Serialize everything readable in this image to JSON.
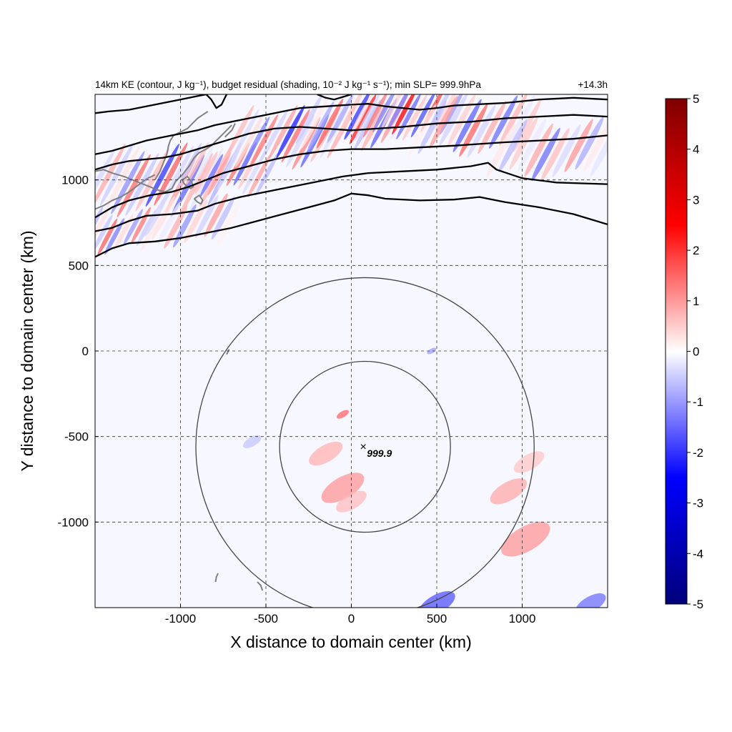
{
  "chart_data": {
    "type": "heatmap",
    "title": "14km KE (contour, J kg⁻¹), budget residual (shading, 10⁻² J kg⁻¹ s⁻¹); min SLP= 999.9hPa",
    "time_label": "+14.3h",
    "xlabel": "X distance to domain center (km)",
    "ylabel": "Y distance to domain center (km)",
    "xlim": [
      -1500,
      1500
    ],
    "ylim": [
      -1500,
      1500
    ],
    "x_ticks": [
      -1000,
      -500,
      0,
      500,
      1000
    ],
    "y_ticks": [
      -1000,
      -500,
      0,
      500,
      1000
    ],
    "x_tick_labels": [
      "-1000",
      "-500",
      "0",
      "500",
      "1000"
    ],
    "y_tick_labels": [
      "-1000",
      "-500",
      "0",
      "500",
      "1000"
    ],
    "grid": "dashed",
    "colorbar": {
      "placement": "right",
      "range": [
        -5,
        5
      ],
      "ticks": [
        5,
        4,
        3,
        2,
        1,
        0,
        -1,
        -2,
        -3,
        -4,
        -5
      ],
      "tick_labels": [
        "5",
        "4",
        "3",
        "2",
        "1",
        "0",
        "-1",
        "-2",
        "-3",
        "-4",
        "-5"
      ],
      "colors": [
        "#00007a",
        "#0000ff",
        "#ffffff",
        "#ff0000",
        "#800000"
      ]
    },
    "storm_center": {
      "x": 70,
      "y": -560,
      "label": "999.9",
      "marker": "×"
    },
    "rings_km": [
      {
        "cx": 80,
        "cy": -560,
        "r": 500
      },
      {
        "cx": 80,
        "cy": -560,
        "r": 990
      }
    ],
    "ke_contours": [
      [
        [
          -1500,
          550
        ],
        [
          -1400,
          600
        ],
        [
          -1300,
          630
        ],
        [
          -1150,
          640
        ],
        [
          -1000,
          660
        ],
        [
          -850,
          690
        ],
        [
          -700,
          720
        ],
        [
          -550,
          760
        ],
        [
          -400,
          800
        ],
        [
          -250,
          840
        ],
        [
          -100,
          880
        ],
        [
          0,
          920
        ],
        [
          100,
          910
        ],
        [
          200,
          890
        ],
        [
          400,
          880
        ],
        [
          600,
          885
        ],
        [
          750,
          900
        ],
        [
          900,
          870
        ],
        [
          1100,
          840
        ],
        [
          1300,
          800
        ],
        [
          1500,
          740
        ]
      ],
      [
        [
          -1500,
          700
        ],
        [
          -1400,
          720
        ],
        [
          -1300,
          760
        ],
        [
          -1200,
          790
        ],
        [
          -1050,
          800
        ],
        [
          -900,
          820
        ],
        [
          -800,
          860
        ],
        [
          -650,
          900
        ],
        [
          -500,
          930
        ],
        [
          -350,
          960
        ],
        [
          -200,
          990
        ],
        [
          -50,
          1020
        ],
        [
          100,
          1040
        ],
        [
          300,
          1050
        ],
        [
          500,
          1060
        ],
        [
          700,
          1080
        ],
        [
          800,
          1100
        ],
        [
          850,
          1060
        ],
        [
          1000,
          1010
        ],
        [
          1200,
          985
        ],
        [
          1350,
          980
        ],
        [
          1500,
          975
        ]
      ],
      [
        [
          -1500,
          780
        ],
        [
          -1400,
          840
        ],
        [
          -1300,
          880
        ],
        [
          -1180,
          910
        ],
        [
          -1050,
          930
        ],
        [
          -950,
          960
        ],
        [
          -850,
          1000
        ],
        [
          -750,
          1040
        ],
        [
          -600,
          1080
        ],
        [
          -450,
          1120
        ],
        [
          -300,
          1150
        ],
        [
          -150,
          1170
        ],
        [
          0,
          1180
        ],
        [
          200,
          1180
        ],
        [
          400,
          1190
        ],
        [
          600,
          1200
        ],
        [
          750,
          1210
        ],
        [
          900,
          1220
        ],
        [
          1100,
          1230
        ],
        [
          1300,
          1240
        ],
        [
          1500,
          1260
        ]
      ],
      [
        [
          -1500,
          1060
        ],
        [
          -1400,
          1090
        ],
        [
          -1300,
          1110
        ],
        [
          -1200,
          1120
        ],
        [
          -1100,
          1130
        ],
        [
          -1000,
          1150
        ],
        [
          -900,
          1180
        ],
        [
          -800,
          1210
        ],
        [
          -700,
          1240
        ],
        [
          -600,
          1270
        ],
        [
          -450,
          1300
        ],
        [
          -300,
          1310
        ],
        [
          -150,
          1300
        ],
        [
          0,
          1290
        ],
        [
          150,
          1300
        ],
        [
          300,
          1310
        ],
        [
          500,
          1330
        ],
        [
          700,
          1340
        ],
        [
          900,
          1360
        ],
        [
          1100,
          1370
        ],
        [
          1300,
          1380
        ],
        [
          1500,
          1370
        ]
      ],
      [
        [
          -1500,
          1150
        ],
        [
          -1400,
          1170
        ],
        [
          -1300,
          1200
        ],
        [
          -1200,
          1230
        ],
        [
          -1100,
          1250
        ],
        [
          -1000,
          1270
        ],
        [
          -900,
          1290
        ],
        [
          -800,
          1320
        ],
        [
          -700,
          1340
        ],
        [
          -600,
          1360
        ],
        [
          -500,
          1380
        ],
        [
          -400,
          1400
        ],
        [
          -300,
          1420
        ],
        [
          -150,
          1430
        ],
        [
          0,
          1440
        ],
        [
          100,
          1445
        ],
        [
          200,
          1430
        ],
        [
          300,
          1420
        ],
        [
          400,
          1410
        ],
        [
          500,
          1420
        ],
        [
          600,
          1435
        ],
        [
          700,
          1440
        ],
        [
          800,
          1445
        ],
        [
          900,
          1450
        ],
        [
          1000,
          1460
        ],
        [
          1100,
          1470
        ],
        [
          1300,
          1480
        ],
        [
          1500,
          1470
        ]
      ],
      [
        [
          -1500,
          1390
        ],
        [
          -1420,
          1400
        ],
        [
          -1300,
          1410
        ],
        [
          -1200,
          1430
        ],
        [
          -1100,
          1450
        ],
        [
          -1000,
          1470
        ],
        [
          -900,
          1490
        ],
        [
          -850,
          1500
        ]
      ],
      [
        [
          -850,
          1500
        ],
        [
          -820,
          1470
        ],
        [
          -790,
          1420
        ],
        [
          -760,
          1440
        ],
        [
          -730,
          1500
        ]
      ],
      [
        [
          -200,
          1500
        ],
        [
          -150,
          1480
        ],
        [
          -100,
          1470
        ],
        [
          -50,
          1485
        ],
        [
          0,
          1500
        ]
      ]
    ],
    "coastlines": [
      [
        [
          -1500,
          1050
        ],
        [
          -1450,
          1060
        ],
        [
          -1400,
          1040
        ],
        [
          -1330,
          1020
        ],
        [
          -1280,
          1000
        ],
        [
          -1230,
          980
        ],
        [
          -1180,
          960
        ],
        [
          -1130,
          940
        ],
        [
          -1090,
          930
        ],
        [
          -1050,
          950
        ],
        [
          -1030,
          990
        ],
        [
          -990,
          1030
        ],
        [
          -950,
          1080
        ],
        [
          -920,
          1130
        ],
        [
          -890,
          1160
        ],
        [
          -850,
          1180
        ],
        [
          -820,
          1200
        ],
        [
          -790,
          1230
        ],
        [
          -760,
          1260
        ],
        [
          -730,
          1290
        ],
        [
          -700,
          1320
        ]
      ],
      [
        [
          -1500,
          830
        ],
        [
          -1450,
          850
        ],
        [
          -1400,
          880
        ],
        [
          -1350,
          900
        ],
        [
          -1300,
          930
        ],
        [
          -1260,
          960
        ],
        [
          -1220,
          990
        ],
        [
          -1190,
          1010
        ],
        [
          -1150,
          1030
        ]
      ],
      [
        [
          -1150,
          1000
        ],
        [
          -1120,
          1050
        ],
        [
          -1100,
          1100
        ],
        [
          -1080,
          1150
        ],
        [
          -1070,
          1200
        ],
        [
          -1060,
          1230
        ],
        [
          -1040,
          1260
        ],
        [
          -1000,
          1280
        ],
        [
          -960,
          1300
        ],
        [
          -930,
          1330
        ],
        [
          -900,
          1360
        ],
        [
          -870,
          1380
        ],
        [
          -840,
          1400
        ]
      ],
      [
        [
          -990,
          1000
        ],
        [
          -980,
          980
        ],
        [
          -960,
          960
        ],
        [
          -940,
          950
        ],
        [
          -925,
          960
        ],
        [
          -935,
          990
        ],
        [
          -960,
          1020
        ],
        [
          -990,
          1000
        ]
      ],
      [
        [
          -920,
          890
        ],
        [
          -900,
          870
        ],
        [
          -880,
          860
        ],
        [
          -870,
          880
        ],
        [
          -890,
          910
        ],
        [
          -920,
          890
        ]
      ],
      [
        [
          -740,
          1250
        ],
        [
          -720,
          1270
        ],
        [
          -700,
          1290
        ],
        [
          -690,
          1310
        ],
        [
          -680,
          1330
        ]
      ],
      [
        [
          -730,
          -20
        ],
        [
          -720,
          0
        ],
        [
          -715,
          10
        ]
      ],
      [
        [
          -780,
          -1300
        ],
        [
          -790,
          -1320
        ],
        [
          -795,
          -1350
        ]
      ],
      [
        [
          -550,
          -1350
        ],
        [
          -530,
          -1370
        ],
        [
          -520,
          -1400
        ]
      ]
    ],
    "residual_features": [
      {
        "cx": -1100,
        "cy": 1000,
        "r": 380,
        "sign": -1,
        "amp": 2.2,
        "wave": 90
      },
      {
        "cx": -700,
        "cy": 1060,
        "r": 260,
        "sign": -1,
        "amp": 2.0,
        "wave": 80
      },
      {
        "cx": -350,
        "cy": 1250,
        "r": 320,
        "sign": 1,
        "amp": 2.4,
        "wave": 85
      },
      {
        "cx": 50,
        "cy": 1350,
        "r": 300,
        "sign": -1,
        "amp": 2.6,
        "wave": 90
      },
      {
        "cx": 350,
        "cy": 1400,
        "r": 280,
        "sign": 1,
        "amp": 2.8,
        "wave": 80
      },
      {
        "cx": 750,
        "cy": 1320,
        "r": 320,
        "sign": 1,
        "amp": 2.0,
        "wave": 100
      },
      {
        "cx": 1200,
        "cy": 1180,
        "r": 320,
        "sign": 1,
        "amp": 1.6,
        "wave": 110
      },
      {
        "cx": -1350,
        "cy": 700,
        "r": 220,
        "sign": 1,
        "amp": 2.0,
        "wave": 80
      },
      {
        "cx": -900,
        "cy": 760,
        "r": 260,
        "sign": -1,
        "amp": 1.4,
        "wave": 100
      },
      {
        "cx": -50,
        "cy": -800,
        "r": 140,
        "sign": 1,
        "amp": 1.1,
        "wave": 0
      },
      {
        "cx": -150,
        "cy": -600,
        "r": 110,
        "sign": 1,
        "amp": 0.8,
        "wave": 0
      },
      {
        "cx": -50,
        "cy": -370,
        "r": 40,
        "sign": 1,
        "amp": 1.6,
        "wave": 0
      },
      {
        "cx": 0,
        "cy": -880,
        "r": 100,
        "sign": 1,
        "amp": 0.7,
        "wave": 0
      },
      {
        "cx": 1020,
        "cy": -1100,
        "r": 160,
        "sign": 1,
        "amp": 1.1,
        "wave": 0
      },
      {
        "cx": 920,
        "cy": -820,
        "r": 120,
        "sign": 1,
        "amp": 0.9,
        "wave": 0
      },
      {
        "cx": 1040,
        "cy": -650,
        "r": 100,
        "sign": 1,
        "amp": 0.6,
        "wave": 0
      },
      {
        "cx": 470,
        "cy": 0,
        "r": 30,
        "sign": -1,
        "amp": 1.0,
        "wave": 0
      },
      {
        "cx": -580,
        "cy": -530,
        "r": 60,
        "sign": -1,
        "amp": 0.6,
        "wave": 0
      },
      {
        "cx": 500,
        "cy": -1480,
        "r": 120,
        "sign": -1,
        "amp": 1.8,
        "wave": 0
      },
      {
        "cx": 1400,
        "cy": -1480,
        "r": 100,
        "sign": -1,
        "amp": 1.5,
        "wave": 0
      }
    ]
  }
}
